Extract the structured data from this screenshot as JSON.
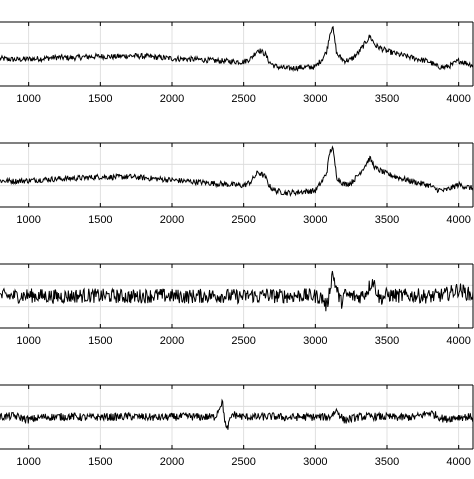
{
  "chart_data": [
    {
      "type": "line",
      "title": "",
      "xlabel": "",
      "ylabel": "",
      "xlim": [
        800,
        4100
      ],
      "xticks": [
        1000,
        1500,
        2000,
        2500,
        3000,
        3500,
        4000
      ],
      "xtick_labels": [
        "1000",
        "1500",
        "2000",
        "2500",
        "3000",
        "3500",
        "4000"
      ],
      "grid": true,
      "line_color": "#000000",
      "series": [
        {
          "x": [
            800,
            900,
            1000,
            1100,
            1200,
            1300,
            1400,
            1500,
            1600,
            1700,
            1800,
            1900,
            2000,
            2100,
            2200,
            2300,
            2400,
            2500,
            2550,
            2600,
            2650,
            2680,
            2720,
            2800,
            2900,
            3000,
            3050,
            3080,
            3100,
            3120,
            3150,
            3200,
            3250,
            3300,
            3350,
            3380,
            3420,
            3500,
            3600,
            3700,
            3800,
            3830,
            3850,
            3900,
            3950,
            4000,
            4050,
            4100
          ],
          "y": [
            0.42,
            0.4,
            0.41,
            0.42,
            0.44,
            0.43,
            0.45,
            0.46,
            0.45,
            0.47,
            0.46,
            0.44,
            0.42,
            0.41,
            0.4,
            0.38,
            0.37,
            0.36,
            0.42,
            0.58,
            0.5,
            0.35,
            0.28,
            0.24,
            0.26,
            0.27,
            0.42,
            0.55,
            0.85,
            1.0,
            0.5,
            0.38,
            0.4,
            0.52,
            0.7,
            0.82,
            0.65,
            0.55,
            0.48,
            0.42,
            0.36,
            0.3,
            0.28,
            0.26,
            0.3,
            0.38,
            0.34,
            0.3
          ],
          "noise": 0.05
        }
      ]
    },
    {
      "type": "line",
      "title": "",
      "xlabel": "",
      "ylabel": "",
      "xlim": [
        800,
        4100
      ],
      "xticks": [
        1000,
        1500,
        2000,
        2500,
        3000,
        3500,
        4000
      ],
      "xtick_labels": [
        "1000",
        "1500",
        "2000",
        "2500",
        "3000",
        "3500",
        "4000"
      ],
      "grid": true,
      "line_color": "#000000",
      "series": [
        {
          "x": [
            800,
            900,
            1000,
            1100,
            1200,
            1300,
            1400,
            1500,
            1600,
            1700,
            1800,
            1900,
            2000,
            2100,
            2200,
            2300,
            2400,
            2500,
            2550,
            2600,
            2650,
            2680,
            2720,
            2800,
            2900,
            3000,
            3050,
            3080,
            3100,
            3120,
            3150,
            3200,
            3250,
            3300,
            3350,
            3380,
            3420,
            3500,
            3600,
            3700,
            3800,
            3830,
            3850,
            3900,
            3950,
            4000,
            4050,
            4100
          ],
          "y": [
            0.4,
            0.39,
            0.4,
            0.42,
            0.43,
            0.44,
            0.45,
            0.47,
            0.46,
            0.47,
            0.45,
            0.43,
            0.41,
            0.39,
            0.37,
            0.35,
            0.33,
            0.31,
            0.38,
            0.55,
            0.47,
            0.3,
            0.22,
            0.18,
            0.2,
            0.22,
            0.4,
            0.55,
            0.9,
            1.0,
            0.46,
            0.33,
            0.36,
            0.5,
            0.68,
            0.8,
            0.62,
            0.52,
            0.44,
            0.37,
            0.31,
            0.26,
            0.24,
            0.22,
            0.27,
            0.33,
            0.29,
            0.26
          ],
          "noise": 0.05
        }
      ]
    },
    {
      "type": "line",
      "title": "",
      "xlabel": "",
      "ylabel": "",
      "xlim": [
        800,
        4100
      ],
      "xticks": [
        1000,
        1500,
        2000,
        2500,
        3000,
        3500,
        4000
      ],
      "xtick_labels": [
        "1000",
        "1500",
        "2000",
        "2500",
        "3000",
        "3500",
        "4000"
      ],
      "grid": true,
      "line_color": "#000000",
      "series": [
        {
          "x": [
            800,
            900,
            1000,
            1100,
            1200,
            1300,
            1400,
            1500,
            1600,
            1700,
            1800,
            1900,
            2000,
            2100,
            2200,
            2300,
            2400,
            2500,
            2550,
            2600,
            2650,
            2700,
            2800,
            2900,
            3000,
            3050,
            3080,
            3120,
            3150,
            3180,
            3200,
            3250,
            3300,
            3350,
            3400,
            3450,
            3500,
            3600,
            3700,
            3800,
            3900,
            4000,
            4100
          ],
          "y": [
            0.5,
            0.5,
            0.51,
            0.5,
            0.49,
            0.5,
            0.51,
            0.5,
            0.5,
            0.49,
            0.5,
            0.51,
            0.5,
            0.49,
            0.5,
            0.51,
            0.5,
            0.49,
            0.52,
            0.48,
            0.53,
            0.5,
            0.5,
            0.51,
            0.5,
            0.46,
            0.3,
            0.92,
            0.6,
            0.38,
            0.52,
            0.5,
            0.48,
            0.55,
            0.78,
            0.45,
            0.52,
            0.5,
            0.51,
            0.49,
            0.52,
            0.62,
            0.5
          ],
          "noise": 0.13
        }
      ]
    },
    {
      "type": "line",
      "title": "",
      "xlabel": "",
      "ylabel": "",
      "xlim": [
        800,
        4100
      ],
      "xticks": [
        1000,
        1500,
        2000,
        2500,
        3000,
        3500,
        4000
      ],
      "xtick_labels": [
        "1000",
        "1500",
        "2000",
        "2500",
        "3000",
        "3500",
        "4000"
      ],
      "grid": true,
      "line_color": "#000000",
      "series": [
        {
          "x": [
            800,
            900,
            1000,
            1100,
            1200,
            1300,
            1400,
            1500,
            1600,
            1700,
            1800,
            1900,
            2000,
            2100,
            2200,
            2300,
            2350,
            2380,
            2420,
            2500,
            2600,
            2700,
            2800,
            2900,
            3000,
            3100,
            3150,
            3200,
            3300,
            3400,
            3500,
            3600,
            3700,
            3800,
            3900,
            4000,
            4100
          ],
          "y": [
            0.5,
            0.52,
            0.45,
            0.5,
            0.5,
            0.51,
            0.49,
            0.5,
            0.5,
            0.51,
            0.5,
            0.49,
            0.5,
            0.51,
            0.5,
            0.5,
            0.78,
            0.25,
            0.55,
            0.5,
            0.5,
            0.51,
            0.49,
            0.5,
            0.5,
            0.5,
            0.62,
            0.44,
            0.5,
            0.51,
            0.5,
            0.49,
            0.5,
            0.58,
            0.46,
            0.5,
            0.5
          ],
          "noise": 0.07
        }
      ]
    }
  ]
}
